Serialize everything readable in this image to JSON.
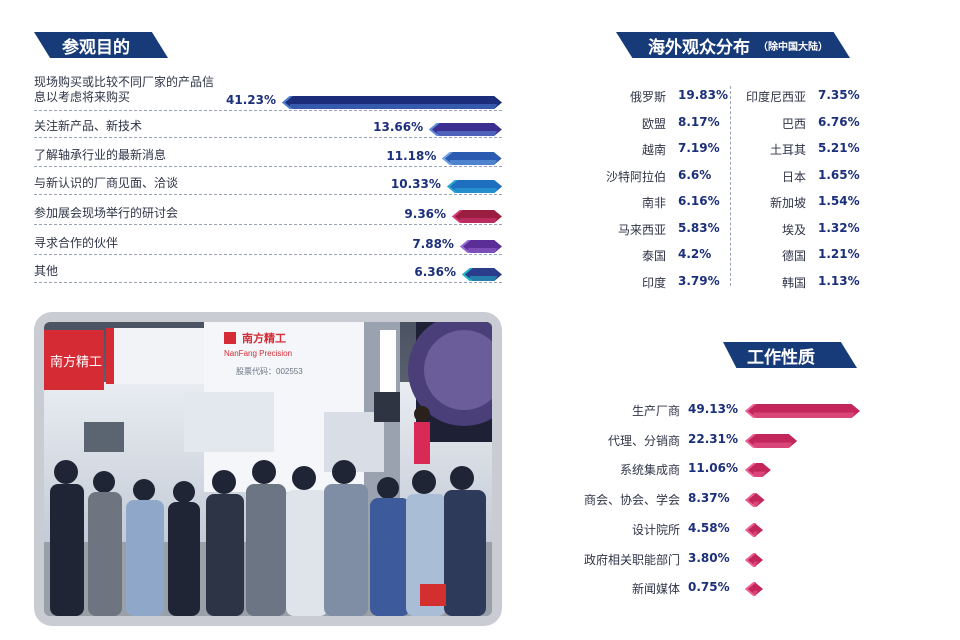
{
  "purpose": {
    "title": "参观目的",
    "items": [
      {
        "label": "现场购买或比较不同厂家的产品信息以考虑将来购买",
        "value": "41.23%",
        "pct": 41.23,
        "color": "#1b2d7a",
        "stripe": "#4a7fd6"
      },
      {
        "label": "关注新产品、新技术",
        "value": "13.66%",
        "pct": 13.66,
        "color": "#3a2f8f",
        "stripe": "#5e8be0"
      },
      {
        "label": "了解轴承行业的最新消息",
        "value": "11.18%",
        "pct": 11.18,
        "color": "#2a5bb0",
        "stripe": "#6fa4e8"
      },
      {
        "label": "与新认识的厂商见面、洽谈",
        "value": "10.33%",
        "pct": 10.33,
        "color": "#1f6fc0",
        "stripe": "#2aa7d6"
      },
      {
        "label": "参加展会现场举行的研讨会",
        "value": "9.36%",
        "pct": 9.36,
        "color": "#9b1d3f",
        "stripe": "#d63a7a"
      },
      {
        "label": "寻求合作的伙伴",
        "value": "7.88%",
        "pct": 7.88,
        "color": "#5a2e96",
        "stripe": "#9a6ad6"
      },
      {
        "label": "其他",
        "value": "6.36%",
        "pct": 6.36,
        "color": "#2a3c8a",
        "stripe": "#22b5c9"
      }
    ]
  },
  "overseas": {
    "title": "海外观众分布",
    "subtitle": "（除中国大陆）",
    "left": [
      {
        "name": "俄罗斯",
        "value": "19.83%"
      },
      {
        "name": "欧盟",
        "value": "8.17%"
      },
      {
        "name": "越南",
        "value": "7.19%"
      },
      {
        "name": "沙特阿拉伯",
        "value": "6.6%"
      },
      {
        "name": "南非",
        "value": "6.16%"
      },
      {
        "name": "马来西亚",
        "value": "5.83%"
      },
      {
        "name": "泰国",
        "value": "4.2%"
      },
      {
        "name": "印度",
        "value": "3.79%"
      }
    ],
    "right": [
      {
        "name": "印度尼西亚",
        "value": "7.35%"
      },
      {
        "name": "巴西",
        "value": "6.76%"
      },
      {
        "name": "土耳其",
        "value": "5.21%"
      },
      {
        "name": "日本",
        "value": "1.65%"
      },
      {
        "name": "新加坡",
        "value": "1.54%"
      },
      {
        "name": "埃及",
        "value": "1.32%"
      },
      {
        "name": "德国",
        "value": "1.21%"
      },
      {
        "name": "韩国",
        "value": "1.13%"
      }
    ]
  },
  "work": {
    "title": "工作性质",
    "items": [
      {
        "label": "生产厂商",
        "value": "49.13%",
        "pct": 49.13
      },
      {
        "label": "代理、分销商",
        "value": "22.31%",
        "pct": 22.31
      },
      {
        "label": "系统集成商",
        "value": "11.06%",
        "pct": 11.06
      },
      {
        "label": "商会、协会、学会",
        "value": "8.37%",
        "pct": 8.37
      },
      {
        "label": "设计院所",
        "value": "4.58%",
        "pct": 4.58
      },
      {
        "label": "政府相关职能部门",
        "value": "3.80%",
        "pct": 3.8
      },
      {
        "label": "新闻媒体",
        "value": "0.75%",
        "pct": 0.75
      }
    ],
    "bar_color": "#c2265a",
    "bar_stripe": "#ee5f94"
  },
  "photo": {
    "booth_brand": "南方精工",
    "booth_brand_en": "NanFang Precision",
    "stock_code": "股票代码：002553"
  },
  "chart_data": [
    {
      "type": "bar",
      "title": "参观目的",
      "categories": [
        "现场购买或比较不同厂家的产品信息以考虑将来购买",
        "关注新产品、新技术",
        "了解轴承行业的最新消息",
        "与新认识的厂商见面、洽谈",
        "参加展会现场举行的研讨会",
        "寻求合作的伙伴",
        "其他"
      ],
      "values": [
        41.23,
        13.66,
        11.18,
        10.33,
        9.36,
        7.88,
        6.36
      ]
    },
    {
      "type": "table",
      "title": "海外观众分布",
      "subtitle": "（除中国大陆）",
      "categories": [
        "俄罗斯",
        "欧盟",
        "越南",
        "沙特阿拉伯",
        "南非",
        "马来西亚",
        "泰国",
        "印度",
        "印度尼西亚",
        "巴西",
        "土耳其",
        "日本",
        "新加坡",
        "埃及",
        "德国",
        "韩国"
      ],
      "values": [
        19.83,
        8.17,
        7.19,
        6.6,
        6.16,
        5.83,
        4.2,
        3.79,
        7.35,
        6.76,
        5.21,
        1.65,
        1.54,
        1.32,
        1.21,
        1.13
      ]
    },
    {
      "type": "bar",
      "title": "工作性质",
      "categories": [
        "生产厂商",
        "代理、分销商",
        "系统集成商",
        "商会、协会、学会",
        "设计院所",
        "政府相关职能部门",
        "新闻媒体"
      ],
      "values": [
        49.13,
        22.31,
        11.06,
        8.37,
        4.58,
        3.8,
        0.75
      ]
    }
  ]
}
